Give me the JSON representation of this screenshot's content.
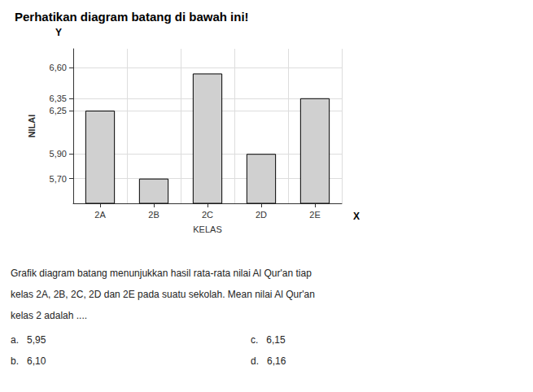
{
  "chart_data": {
    "type": "bar",
    "title": "Perhatikan diagram batang di bawah ini!",
    "subtitle": [
      "Grafik diagram batang menunjukkan hasil rata-rata nilai Al Qur'an tiap",
      "kelas 2A, 2B, 2C, 2D dan 2E pada suatu sekolah. Mean nilai Al Qur'an",
      "kelas 2 adalah ...."
    ],
    "xlabel": "KELAS",
    "ylabel": "NILAI",
    "categories": [
      "2A",
      "2B",
      "2C",
      "2D",
      "2E"
    ],
    "values": [
      6.25,
      5.7,
      6.55,
      5.9,
      6.35
    ],
    "color": "#d0d0d0",
    "ylim": [
      5.5,
      6.75
    ],
    "yticks": [
      {
        "value": 5.7,
        "label": "5,70"
      },
      {
        "value": 5.9,
        "label": "5,90"
      },
      {
        "value": 6.25,
        "label": "6,25"
      },
      {
        "value": 6.35,
        "label": "6,35"
      },
      {
        "value": 6.6,
        "label": "6,60"
      }
    ],
    "grid": true,
    "annotations": [
      "Y",
      "X",
      "a.   5,95",
      "b.   6,10",
      "c.   6,15",
      "d.   6,16"
    ]
  }
}
